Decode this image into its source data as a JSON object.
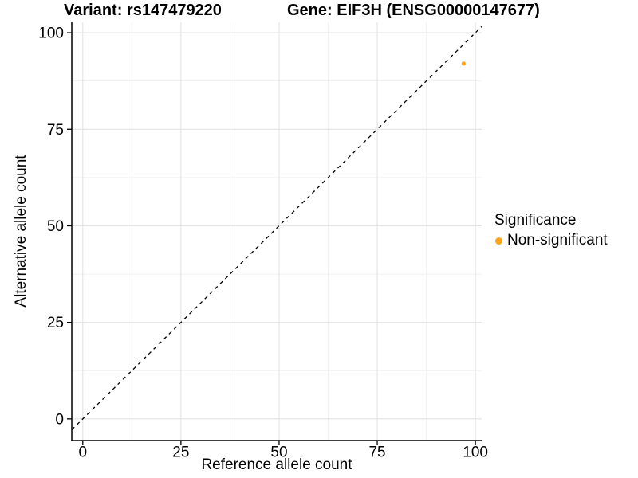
{
  "header": {
    "variant_title": "Variant: rs147479220",
    "gene_title": "Gene: EIF3H (ENSG00000147677)"
  },
  "chart_data": {
    "type": "scatter",
    "title": "Variant: rs147479220    Gene: EIF3H (ENSG00000147677)",
    "xlabel": "Reference allele count",
    "ylabel": "Alternative allele count",
    "xlim": [
      -2.8,
      101.6
    ],
    "ylim": [
      -5.6,
      102.7
    ],
    "x_ticks": [
      0,
      25,
      50,
      75,
      100
    ],
    "y_ticks": [
      0,
      25,
      50,
      75,
      100
    ],
    "x_minor_ticks": [
      12.5,
      37.5,
      62.5,
      87.5
    ],
    "y_minor_ticks": [
      12.5,
      37.5,
      62.5,
      87.5
    ],
    "grid": "major and minor gridlines on white background",
    "legend_position": "right",
    "legend_title": "Significance",
    "series": [
      {
        "name": "Non-significant",
        "color": "#FFA319",
        "points": [
          {
            "x": 97,
            "y": 92
          }
        ]
      }
    ],
    "reference_line": {
      "type": "identity y=x",
      "style": "dashed",
      "color": "#000000"
    }
  },
  "colors": {
    "background": "#FFFFFF",
    "grid_major": "#E3E3E3",
    "grid_minor": "#F1F1F1",
    "axis": "#000000",
    "text": "#000000"
  }
}
